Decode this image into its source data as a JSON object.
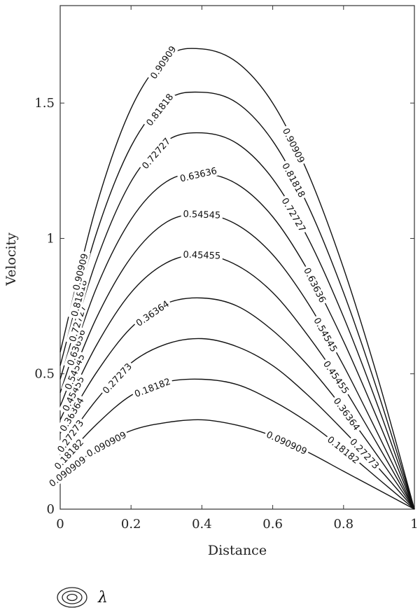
{
  "chart_data": {
    "type": "line",
    "xlabel": "Distance",
    "ylabel": "Velocity",
    "xlim": [
      0,
      1
    ],
    "ylim": [
      0,
      1.86
    ],
    "x_ticks": [
      "0",
      "0.2",
      "0.4",
      "0.6",
      "0.8",
      "1"
    ],
    "y_ticks": [
      "0",
      "0.5",
      "1",
      "1.5"
    ],
    "x_tick_values": [
      0,
      0.2,
      0.4,
      0.6,
      0.8,
      1
    ],
    "y_tick_values": [
      0,
      0.5,
      1,
      1.5
    ],
    "legend": {
      "symbol": "concentric-circles-icon",
      "label": "λ",
      "placement": "bottom-left"
    },
    "grid": false,
    "series": [
      {
        "name": "0.090909",
        "x": [
          0,
          0.1,
          0.2,
          0.3,
          0.4,
          0.5,
          0.6,
          0.7,
          0.8,
          0.9,
          1.0
        ],
        "values": [
          0.12,
          0.22,
          0.29,
          0.32,
          0.33,
          0.31,
          0.27,
          0.21,
          0.14,
          0.07,
          0.0
        ]
      },
      {
        "name": "0.18182",
        "x": [
          0,
          0.1,
          0.2,
          0.3,
          0.4,
          0.5,
          0.6,
          0.7,
          0.8,
          0.9,
          1.0
        ],
        "values": [
          0.17,
          0.31,
          0.42,
          0.47,
          0.48,
          0.46,
          0.4,
          0.32,
          0.22,
          0.11,
          0.0
        ]
      },
      {
        "name": "0.27273",
        "x": [
          0,
          0.1,
          0.2,
          0.3,
          0.4,
          0.5,
          0.6,
          0.7,
          0.8,
          0.9,
          1.0
        ],
        "values": [
          0.22,
          0.4,
          0.54,
          0.61,
          0.63,
          0.6,
          0.53,
          0.42,
          0.29,
          0.15,
          0.0
        ]
      },
      {
        "name": "0.36364",
        "x": [
          0,
          0.1,
          0.2,
          0.3,
          0.4,
          0.5,
          0.6,
          0.7,
          0.8,
          0.9,
          1.0
        ],
        "values": [
          0.28,
          0.5,
          0.67,
          0.76,
          0.78,
          0.75,
          0.66,
          0.53,
          0.37,
          0.19,
          0.0
        ]
      },
      {
        "name": "0.45455",
        "x": [
          0,
          0.1,
          0.2,
          0.3,
          0.4,
          0.5,
          0.6,
          0.7,
          0.8,
          0.9,
          1.0
        ],
        "values": [
          0.33,
          0.6,
          0.8,
          0.91,
          0.94,
          0.9,
          0.8,
          0.64,
          0.45,
          0.23,
          0.0
        ]
      },
      {
        "name": "0.54545",
        "x": [
          0,
          0.1,
          0.2,
          0.3,
          0.4,
          0.5,
          0.6,
          0.7,
          0.8,
          0.9,
          1.0
        ],
        "values": [
          0.38,
          0.7,
          0.93,
          1.06,
          1.09,
          1.05,
          0.94,
          0.76,
          0.53,
          0.27,
          0.0
        ]
      },
      {
        "name": "0.63636",
        "x": [
          0,
          0.1,
          0.2,
          0.3,
          0.4,
          0.5,
          0.6,
          0.7,
          0.8,
          0.9,
          1.0
        ],
        "values": [
          0.43,
          0.81,
          1.07,
          1.21,
          1.24,
          1.2,
          1.08,
          0.88,
          0.62,
          0.32,
          0.0
        ]
      },
      {
        "name": "0.72727",
        "x": [
          0,
          0.1,
          0.2,
          0.3,
          0.4,
          0.5,
          0.6,
          0.7,
          0.8,
          0.9,
          1.0
        ],
        "values": [
          0.48,
          0.91,
          1.21,
          1.36,
          1.39,
          1.35,
          1.22,
          1.0,
          0.71,
          0.37,
          0.0
        ]
      },
      {
        "name": "0.81818",
        "x": [
          0,
          0.1,
          0.2,
          0.3,
          0.4,
          0.5,
          0.6,
          0.7,
          0.8,
          0.9,
          1.0
        ],
        "values": [
          0.53,
          1.01,
          1.34,
          1.51,
          1.54,
          1.5,
          1.36,
          1.12,
          0.8,
          0.42,
          0.0
        ]
      },
      {
        "name": "0.90909",
        "x": [
          0,
          0.1,
          0.2,
          0.3,
          0.4,
          0.5,
          0.6,
          0.7,
          0.8,
          0.9,
          1.0
        ],
        "values": [
          0.58,
          1.11,
          1.48,
          1.67,
          1.7,
          1.65,
          1.5,
          1.24,
          0.89,
          0.47,
          0.0
        ]
      }
    ]
  }
}
